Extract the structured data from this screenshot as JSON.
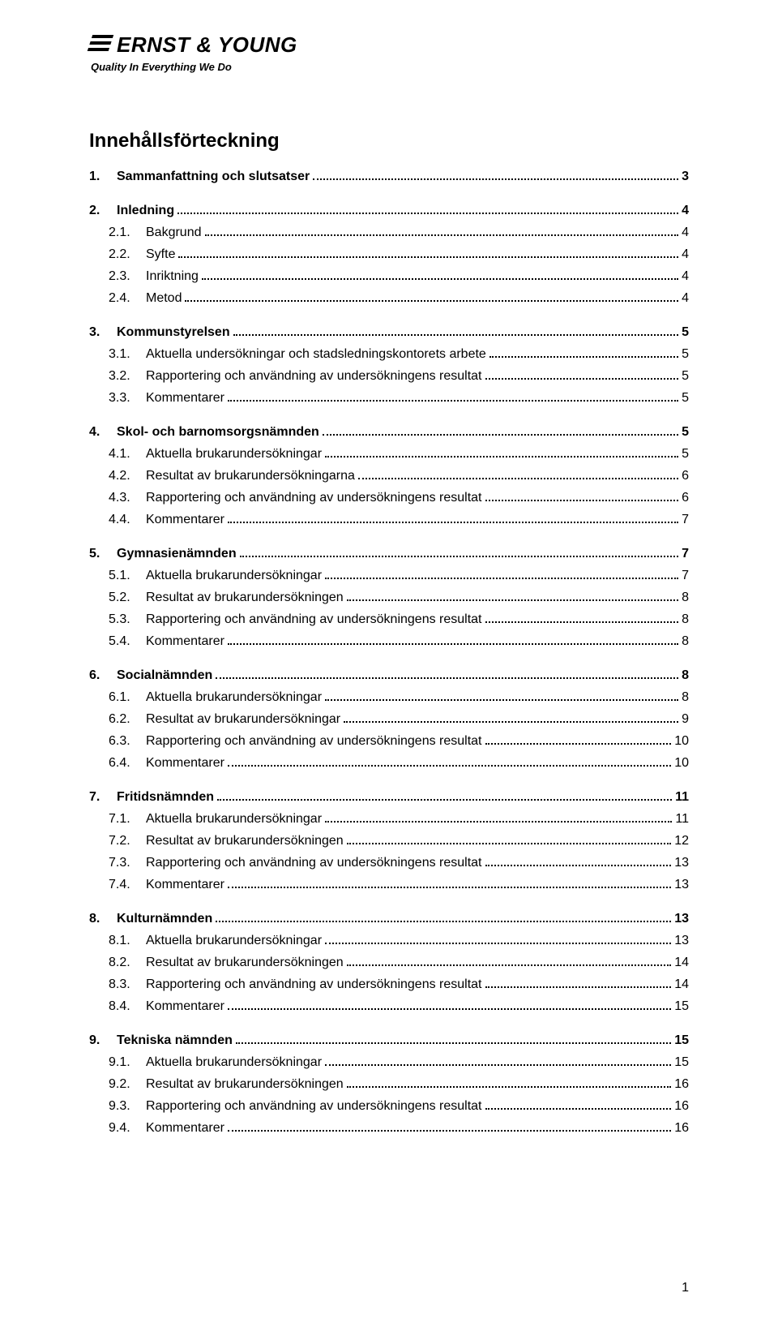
{
  "logo": {
    "brand": "ERNST & YOUNG",
    "tagline": "Quality In Everything We Do"
  },
  "title": "Innehållsförteckning",
  "page_number": "1",
  "toc": [
    {
      "level": 1,
      "num": "1.",
      "label": "Sammanfattning och slutsatser",
      "page": "3"
    },
    {
      "level": 1,
      "num": "2.",
      "label": "Inledning",
      "page": "4"
    },
    {
      "level": 2,
      "num": "2.1.",
      "label": "Bakgrund",
      "page": "4"
    },
    {
      "level": 2,
      "num": "2.2.",
      "label": "Syfte",
      "page": "4"
    },
    {
      "level": 2,
      "num": "2.3.",
      "label": "Inriktning",
      "page": "4"
    },
    {
      "level": 2,
      "num": "2.4.",
      "label": "Metod",
      "page": "4"
    },
    {
      "level": 1,
      "num": "3.",
      "label": "Kommunstyrelsen",
      "page": "5"
    },
    {
      "level": 2,
      "num": "3.1.",
      "label": "Aktuella undersökningar och stadsledningskontorets arbete",
      "page": "5"
    },
    {
      "level": 2,
      "num": "3.2.",
      "label": "Rapportering och användning av undersökningens resultat",
      "page": "5"
    },
    {
      "level": 2,
      "num": "3.3.",
      "label": "Kommentarer",
      "page": "5"
    },
    {
      "level": 1,
      "num": "4.",
      "label": "Skol- och barnomsorgsnämnden",
      "page": "5"
    },
    {
      "level": 2,
      "num": "4.1.",
      "label": "Aktuella brukarundersökningar",
      "page": "5"
    },
    {
      "level": 2,
      "num": "4.2.",
      "label": "Resultat av brukarundersökningarna",
      "page": "6"
    },
    {
      "level": 2,
      "num": "4.3.",
      "label": "Rapportering och användning av undersökningens resultat",
      "page": "6"
    },
    {
      "level": 2,
      "num": "4.4.",
      "label": "Kommentarer",
      "page": "7"
    },
    {
      "level": 1,
      "num": "5.",
      "label": "Gymnasienämnden",
      "page": "7"
    },
    {
      "level": 2,
      "num": "5.1.",
      "label": "Aktuella brukarundersökningar",
      "page": "7"
    },
    {
      "level": 2,
      "num": "5.2.",
      "label": "Resultat av brukarundersökningen",
      "page": "8"
    },
    {
      "level": 2,
      "num": "5.3.",
      "label": "Rapportering och användning av undersökningens resultat",
      "page": "8"
    },
    {
      "level": 2,
      "num": "5.4.",
      "label": "Kommentarer",
      "page": "8"
    },
    {
      "level": 1,
      "num": "6.",
      "label": "Socialnämnden",
      "page": "8"
    },
    {
      "level": 2,
      "num": "6.1.",
      "label": "Aktuella brukarundersökningar",
      "page": "8"
    },
    {
      "level": 2,
      "num": "6.2.",
      "label": "Resultat av brukarundersökningar",
      "page": "9"
    },
    {
      "level": 2,
      "num": "6.3.",
      "label": "Rapportering och användning av undersökningens resultat",
      "page": "10"
    },
    {
      "level": 2,
      "num": "6.4.",
      "label": "Kommentarer",
      "page": "10"
    },
    {
      "level": 1,
      "num": "7.",
      "label": "Fritidsnämnden",
      "page": "11"
    },
    {
      "level": 2,
      "num": "7.1.",
      "label": "Aktuella brukarundersökningar",
      "page": "11"
    },
    {
      "level": 2,
      "num": "7.2.",
      "label": "Resultat av brukarundersökningen",
      "page": "12"
    },
    {
      "level": 2,
      "num": "7.3.",
      "label": "Rapportering och användning av undersökningens resultat",
      "page": "13"
    },
    {
      "level": 2,
      "num": "7.4.",
      "label": "Kommentarer",
      "page": "13"
    },
    {
      "level": 1,
      "num": "8.",
      "label": "Kulturnämnden",
      "page": "13"
    },
    {
      "level": 2,
      "num": "8.1.",
      "label": "Aktuella brukarundersökningar",
      "page": "13"
    },
    {
      "level": 2,
      "num": "8.2.",
      "label": "Resultat av brukarundersökningen",
      "page": "14"
    },
    {
      "level": 2,
      "num": "8.3.",
      "label": "Rapportering och användning av undersökningens resultat",
      "page": "14"
    },
    {
      "level": 2,
      "num": "8.4.",
      "label": "Kommentarer",
      "page": "15"
    },
    {
      "level": 1,
      "num": "9.",
      "label": "Tekniska nämnden",
      "page": "15"
    },
    {
      "level": 2,
      "num": "9.1.",
      "label": "Aktuella brukarundersökningar",
      "page": "15"
    },
    {
      "level": 2,
      "num": "9.2.",
      "label": "Resultat av brukarundersökningen",
      "page": "16"
    },
    {
      "level": 2,
      "num": "9.3.",
      "label": "Rapportering och användning av undersökningens resultat",
      "page": "16"
    },
    {
      "level": 2,
      "num": "9.4.",
      "label": "Kommentarer",
      "page": "16"
    }
  ]
}
